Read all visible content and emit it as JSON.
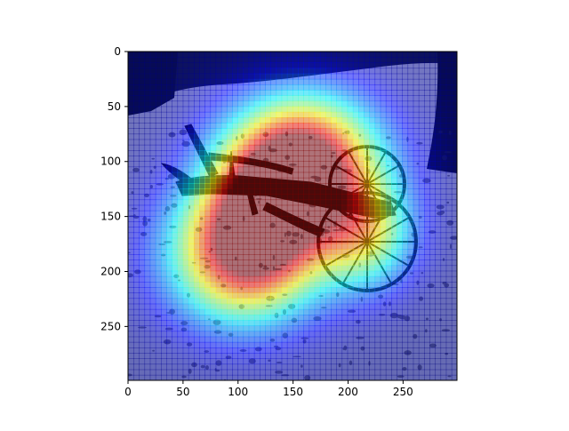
{
  "chart_data": {
    "type": "heatmap",
    "description_visible": "image with attention heatmap overlay",
    "x_ticks": [
      0,
      50,
      100,
      150,
      200,
      250
    ],
    "y_ticks": [
      0,
      50,
      100,
      150,
      200,
      250
    ],
    "xlim": [
      0,
      299
    ],
    "ylim": [
      299,
      0
    ],
    "image_size": [
      299,
      299
    ],
    "colormap": "jet",
    "hotspots": [
      {
        "x": 160,
        "y": 95,
        "sx": 48,
        "sy": 40,
        "w": 0.95
      },
      {
        "x": 105,
        "y": 185,
        "sx": 48,
        "sy": 44,
        "w": 0.9
      },
      {
        "x": 215,
        "y": 165,
        "sx": 32,
        "sy": 36,
        "w": 0.55
      },
      {
        "x": 130,
        "y": 140,
        "sx": 40,
        "sy": 40,
        "w": 0.6
      }
    ]
  }
}
